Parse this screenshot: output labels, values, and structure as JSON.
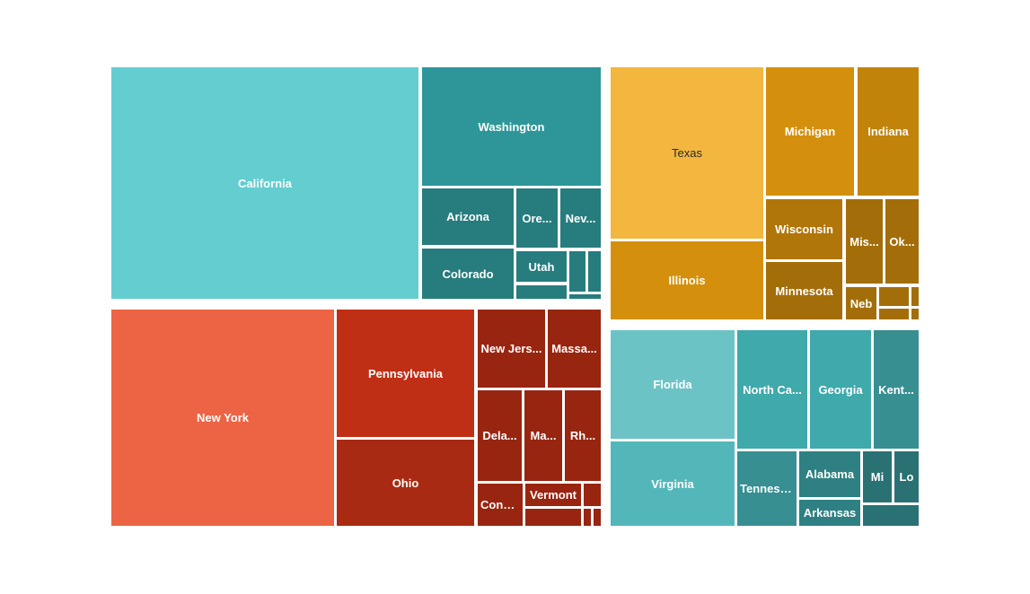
{
  "chart_data": {
    "type": "treemap",
    "title": "",
    "groups": [
      {
        "color": "#2e9698",
        "states": [
          {
            "label": "California",
            "color": "#64cdd0"
          },
          {
            "label": "Washington",
            "color": "#2e9698"
          },
          {
            "label": "Arizona",
            "color": "#277c7e"
          },
          {
            "label": "Ore...",
            "color": "#277c7e"
          },
          {
            "label": "Nev...",
            "color": "#277c7e"
          },
          {
            "label": "Colorado",
            "color": "#277c7e"
          },
          {
            "label": "Utah",
            "color": "#277c7e"
          },
          {
            "label": "",
            "color": "#277c7e"
          },
          {
            "label": "",
            "color": "#277c7e"
          },
          {
            "label": "",
            "color": "#277c7e"
          },
          {
            "label": "",
            "color": "#277c7e"
          }
        ]
      },
      {
        "color": "#d4900c",
        "states": [
          {
            "label": "Texas",
            "color": "#f3b63e"
          },
          {
            "label": "Illinois",
            "color": "#d4900c"
          },
          {
            "label": "Michigan",
            "color": "#d4900c"
          },
          {
            "label": "Indiana",
            "color": "#c2830b"
          },
          {
            "label": "Wisconsin",
            "color": "#b0760a"
          },
          {
            "label": "Mis...",
            "color": "#a36e09"
          },
          {
            "label": "Ok...",
            "color": "#a36e09"
          },
          {
            "label": "Minnesota",
            "color": "#a36e09"
          },
          {
            "label": "Neb",
            "color": "#a36e09"
          },
          {
            "label": "",
            "color": "#a36e09"
          },
          {
            "label": "",
            "color": "#a36e09"
          },
          {
            "label": "",
            "color": "#a36e09"
          },
          {
            "label": "",
            "color": "#a36e09"
          }
        ]
      },
      {
        "color": "#bf2f15",
        "states": [
          {
            "label": "New York",
            "color": "#ec6444"
          },
          {
            "label": "Pennsylvania",
            "color": "#bf2f15"
          },
          {
            "label": "Ohio",
            "color": "#a92a12"
          },
          {
            "label": "New Jers...",
            "color": "#982510"
          },
          {
            "label": "Massa...",
            "color": "#982510"
          },
          {
            "label": "Dela...",
            "color": "#982510"
          },
          {
            "label": "Ma...",
            "color": "#982510"
          },
          {
            "label": "Rh...",
            "color": "#982510"
          },
          {
            "label": "Conn...",
            "color": "#982510"
          },
          {
            "label": "Vermont",
            "color": "#982510"
          },
          {
            "label": "",
            "color": "#982510"
          },
          {
            "label": "",
            "color": "#982510"
          },
          {
            "label": "",
            "color": "#982510"
          },
          {
            "label": "",
            "color": "#982510"
          }
        ]
      },
      {
        "color": "#3fa9ab",
        "states": [
          {
            "label": "Florida",
            "color": "#6cc3c6"
          },
          {
            "label": "Virginia",
            "color": "#53b7ba"
          },
          {
            "label": "North Ca...",
            "color": "#3fa9ab"
          },
          {
            "label": "Georgia",
            "color": "#3fa9ab"
          },
          {
            "label": "Kent...",
            "color": "#378f92"
          },
          {
            "label": "Tenness...",
            "color": "#378f92"
          },
          {
            "label": "Alabama",
            "color": "#2f8082"
          },
          {
            "label": "Arkansas",
            "color": "#2f8082"
          },
          {
            "label": "Mi",
            "color": "#2a7173"
          },
          {
            "label": "Lo",
            "color": "#2a7173"
          },
          {
            "label": "",
            "color": "#2a7173"
          }
        ]
      }
    ]
  }
}
